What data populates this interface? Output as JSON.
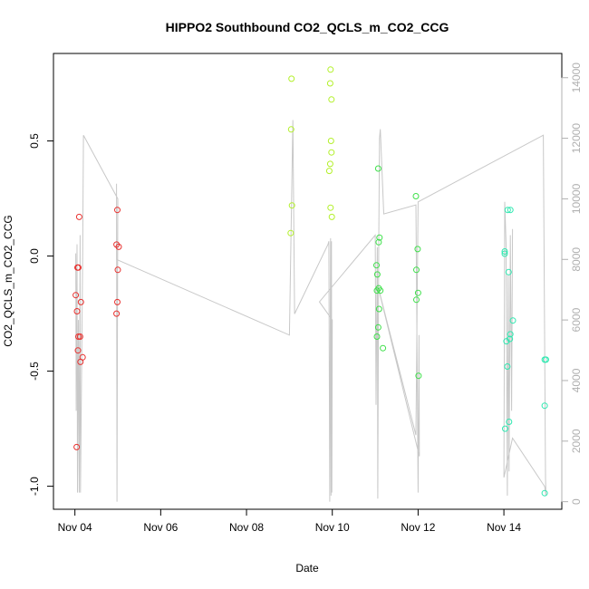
{
  "chart_data": {
    "type": "scatter",
    "title": "HIPPO2 Southbound CO2_QCLS_m_CO2_CCG",
    "xlabel": "Date",
    "ylabel": "CO2_QCLS_m_CO2_CCG",
    "x_tick_labels": [
      "Nov 04",
      "Nov 06",
      "Nov 08",
      "Nov 10",
      "Nov 12",
      "Nov 14"
    ],
    "x_ticks_days": [
      4,
      6,
      8,
      10,
      12,
      14
    ],
    "xlim_days": [
      3.5,
      15.35
    ],
    "y_tick_labels": [
      "-1.0",
      "-0.5",
      "0.0",
      "0.5"
    ],
    "y_ticks": [
      -1.0,
      -0.5,
      0.0,
      0.5
    ],
    "ylim": [
      -1.1,
      0.88
    ],
    "y2_tick_labels": [
      "0",
      "2000",
      "4000",
      "6000",
      "8000",
      "10000",
      "12000",
      "14000"
    ],
    "y2_ticks": [
      0,
      2000,
      4000,
      6000,
      8000,
      10000,
      12000,
      14000
    ],
    "y2lim": [
      -250,
      14800
    ],
    "grid": false,
    "colors": {
      "flight1": "#e8312f",
      "flight2": "#b3f02a",
      "flight3": "#3ee04a",
      "flight4": "#2ee8b0",
      "altitude": "#c8c8c8",
      "axis": "#000000",
      "right_axis": "#b0b0b0"
    },
    "series": [
      {
        "color": "#e8312f",
        "points": [
          [
            4.02,
            -0.17
          ],
          [
            4.05,
            -0.24
          ],
          [
            4.06,
            -0.05
          ],
          [
            4.08,
            -0.05
          ],
          [
            4.1,
            0.17
          ],
          [
            4.07,
            -0.41
          ],
          [
            4.08,
            -0.35
          ],
          [
            4.12,
            -0.35
          ],
          [
            4.14,
            -0.2
          ],
          [
            4.18,
            -0.44
          ],
          [
            4.13,
            -0.46
          ],
          [
            4.04,
            -0.83
          ],
          [
            4.97,
            0.05
          ],
          [
            4.99,
            0.2
          ],
          [
            5.02,
            0.04
          ],
          [
            5.0,
            -0.06
          ],
          [
            4.99,
            -0.2
          ],
          [
            4.97,
            -0.25
          ]
        ]
      },
      {
        "color": "#b3f02a",
        "points": [
          [
            9.05,
            0.77
          ],
          [
            9.04,
            0.55
          ],
          [
            9.06,
            0.22
          ],
          [
            9.03,
            0.1
          ],
          [
            9.96,
            0.81
          ],
          [
            9.95,
            0.75
          ],
          [
            9.98,
            0.68
          ],
          [
            9.97,
            0.5
          ],
          [
            9.98,
            0.45
          ],
          [
            9.95,
            0.4
          ],
          [
            9.93,
            0.37
          ],
          [
            9.96,
            0.21
          ],
          [
            9.99,
            0.17
          ]
        ]
      },
      {
        "color": "#3ee04a",
        "points": [
          [
            11.07,
            0.38
          ],
          [
            11.1,
            0.08
          ],
          [
            11.08,
            0.06
          ],
          [
            11.03,
            -0.04
          ],
          [
            11.05,
            -0.08
          ],
          [
            11.04,
            -0.15
          ],
          [
            11.08,
            -0.14
          ],
          [
            11.12,
            -0.15
          ],
          [
            11.09,
            -0.23
          ],
          [
            11.07,
            -0.31
          ],
          [
            11.04,
            -0.35
          ],
          [
            11.18,
            -0.4
          ],
          [
            11.95,
            0.26
          ],
          [
            11.99,
            0.03
          ],
          [
            11.96,
            -0.06
          ],
          [
            12.0,
            -0.16
          ],
          [
            11.96,
            -0.19
          ],
          [
            12.01,
            -0.52
          ]
        ]
      },
      {
        "color": "#2ee8b0",
        "points": [
          [
            14.02,
            0.01
          ],
          [
            14.02,
            0.02
          ],
          [
            14.09,
            0.2
          ],
          [
            14.15,
            0.2
          ],
          [
            14.11,
            -0.07
          ],
          [
            14.21,
            -0.28
          ],
          [
            14.15,
            -0.34
          ],
          [
            14.14,
            -0.36
          ],
          [
            14.06,
            -0.37
          ],
          [
            14.08,
            -0.48
          ],
          [
            14.12,
            -0.72
          ],
          [
            14.03,
            -0.75
          ],
          [
            14.95,
            -0.45
          ],
          [
            14.98,
            -0.45
          ],
          [
            14.95,
            -0.65
          ],
          [
            14.95,
            -1.03
          ]
        ]
      }
    ],
    "altitude_line": [
      [
        4.02,
        8200
      ],
      [
        4.03,
        3000
      ],
      [
        4.05,
        8500
      ],
      [
        4.06,
        300
      ],
      [
        4.08,
        6000
      ],
      [
        4.1,
        300
      ],
      [
        4.12,
        8800
      ],
      [
        4.13,
        300
      ],
      [
        4.18,
        8000
      ],
      [
        4.2,
        12100
      ],
      [
        5.0,
        10000
      ],
      [
        4.98,
        0
      ],
      [
        4.97,
        10500
      ],
      [
        4.97,
        8000
      ],
      [
        9.0,
        5500
      ],
      [
        9.08,
        12600
      ],
      [
        9.12,
        6200
      ],
      [
        9.9,
        8500
      ],
      [
        9.92,
        8600
      ],
      [
        9.94,
        0
      ],
      [
        9.96,
        8700
      ],
      [
        9.97,
        200
      ],
      [
        9.98,
        8600
      ],
      [
        9.99,
        300
      ],
      [
        10.0,
        6000
      ],
      [
        9.7,
        6600
      ],
      [
        11.0,
        8800
      ],
      [
        11.02,
        3200
      ],
      [
        11.05,
        8400
      ],
      [
        11.06,
        100
      ],
      [
        11.08,
        8200
      ],
      [
        11.1,
        12000
      ],
      [
        11.12,
        12300
      ],
      [
        11.2,
        9500
      ],
      [
        11.95,
        9800
      ],
      [
        12.0,
        300
      ],
      [
        12.02,
        5500
      ],
      [
        12.03,
        1500
      ],
      [
        11.05,
        7200
      ],
      [
        11.95,
        2200
      ],
      [
        12.0,
        9900
      ],
      [
        14.92,
        12100
      ],
      [
        14.97,
        800
      ],
      [
        14.98,
        200
      ],
      [
        14.95,
        500
      ],
      [
        14.2,
        2100
      ],
      [
        14.0,
        800
      ],
      [
        14.02,
        9900
      ],
      [
        14.05,
        8500
      ],
      [
        14.08,
        200
      ],
      [
        14.1,
        7500
      ],
      [
        14.12,
        1000
      ],
      [
        14.15,
        8800
      ],
      [
        14.18,
        3000
      ],
      [
        14.2,
        9000
      ]
    ]
  }
}
